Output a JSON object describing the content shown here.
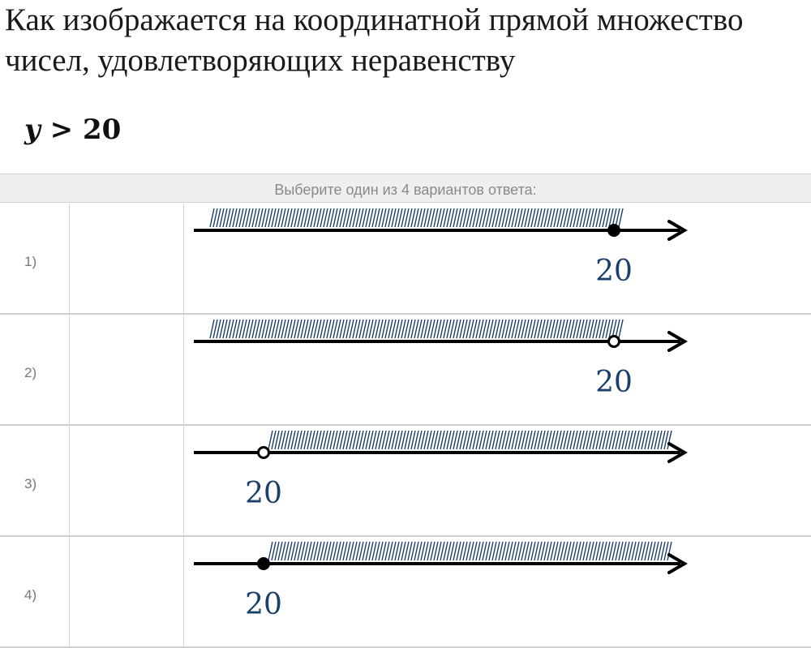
{
  "question": {
    "line1": "Как изображается на координатной прямой множество",
    "line2": "чисел, удовлетворяющих неравенству"
  },
  "formula": {
    "var": "y",
    "op": " > ",
    "value": "20"
  },
  "answers_header": "Выберите один из 4 вариантов ответа:",
  "options": [
    {
      "number": "1)",
      "point_label": "20",
      "point": "filled",
      "shading": "left"
    },
    {
      "number": "2)",
      "point_label": "20",
      "point": "open",
      "shading": "left"
    },
    {
      "number": "3)",
      "point_label": "20",
      "point": "open",
      "shading": "right"
    },
    {
      "number": "4)",
      "point_label": "20",
      "point": "filled",
      "shading": "right"
    }
  ],
  "colors": {
    "label": "#1a3f6b",
    "hatch": "#1a3f6b",
    "axis": "#000000",
    "header_bg": "#efefef"
  }
}
